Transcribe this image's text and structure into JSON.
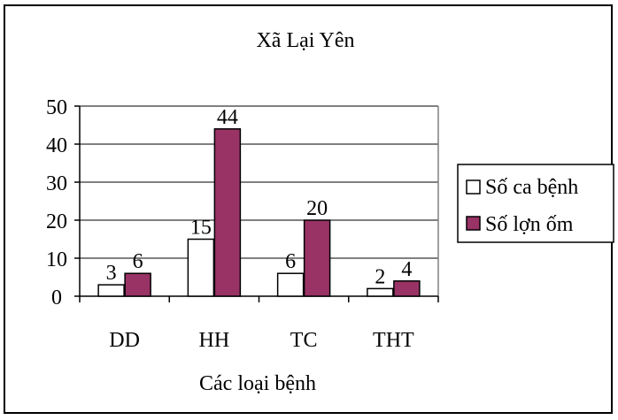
{
  "chart_data": {
    "type": "bar",
    "title": "Xã Lại Yên",
    "xlabel": "Các loại bệnh",
    "ylabel": "",
    "categories": [
      "DD",
      "HH",
      "TC",
      "THT"
    ],
    "ylim": [
      0,
      50
    ],
    "yticks": [
      0,
      10,
      20,
      30,
      40,
      50
    ],
    "grid": true,
    "legend_position": "right",
    "data_labels": true,
    "series": [
      {
        "name": "Số ca bệnh",
        "values": [
          3,
          15,
          6,
          2
        ],
        "color": "#ffffff"
      },
      {
        "name": "Số lợn ốm",
        "values": [
          6,
          44,
          20,
          4
        ],
        "color": "#993366"
      }
    ]
  }
}
